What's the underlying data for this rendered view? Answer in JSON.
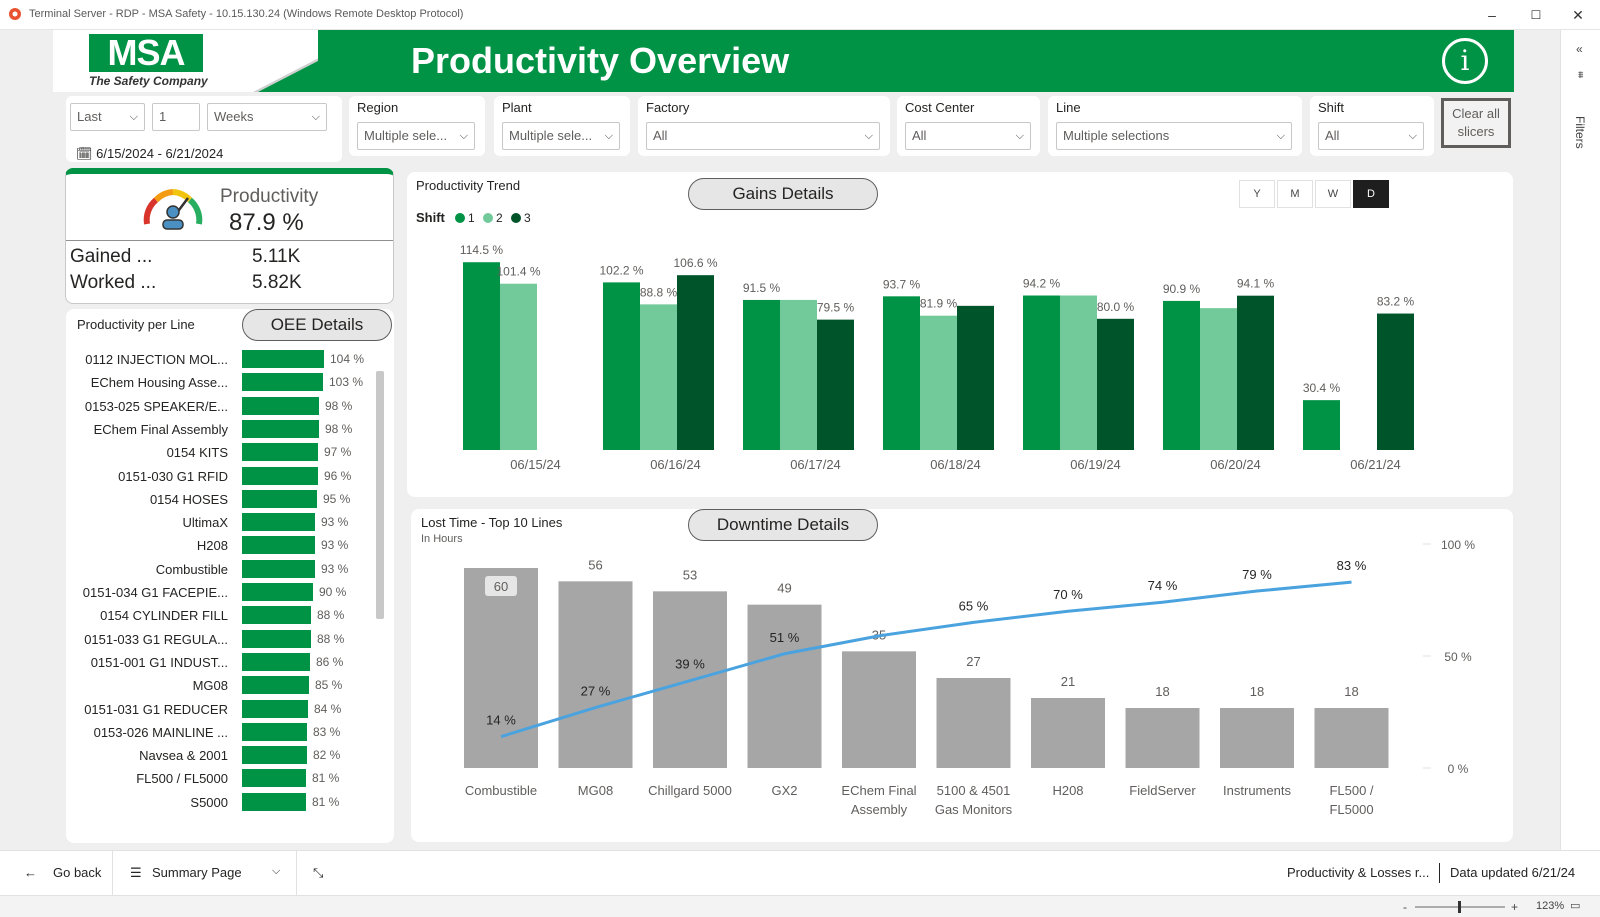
{
  "window": {
    "title": "Terminal Server - RDP - MSA Safety - 10.15.130.24 (Windows Remote Desktop Protocol)",
    "controls": [
      "–",
      "☐",
      "✕"
    ]
  },
  "header": {
    "logo_text": "MSA",
    "tagline": "The Safety Company",
    "title": "Productivity Overview",
    "info_label": "i",
    "brand_color": "#009245"
  },
  "filters": {
    "relative": {
      "mode": "Last",
      "count": "1",
      "unit": "Weeks",
      "date_range": "6/15/2024 - 6/21/2024"
    },
    "region": {
      "label": "Region",
      "value": "Multiple sele..."
    },
    "plant": {
      "label": "Plant",
      "value": "Multiple sele..."
    },
    "factory": {
      "label": "Factory",
      "value": "All"
    },
    "cost_center": {
      "label": "Cost Center",
      "value": "All"
    },
    "line": {
      "label": "Line",
      "value": "Multiple selections"
    },
    "shift": {
      "label": "Shift",
      "value": "All"
    },
    "clear_label": "Clear all slicers",
    "pane_label": "Filters"
  },
  "kpi": {
    "label": "Productivity",
    "value": "87.9 %",
    "rows": [
      {
        "label": "Gained ...",
        "value": "5.11K"
      },
      {
        "label": "Worked ...",
        "value": "5.82K"
      }
    ]
  },
  "productivity_per_line": {
    "title": "Productivity per Line",
    "button": "OEE Details",
    "rows": [
      {
        "name": "0112 INJECTION MOL...",
        "pct": "104 %",
        "value": 104
      },
      {
        "name": "EChem Housing Asse...",
        "pct": "103 %",
        "value": 103
      },
      {
        "name": "0153-025 SPEAKER/E...",
        "pct": "98 %",
        "value": 98
      },
      {
        "name": "EChem Final Assembly",
        "pct": "98 %",
        "value": 98
      },
      {
        "name": "0154 KITS",
        "pct": "97 %",
        "value": 97
      },
      {
        "name": "0151-030 G1 RFID",
        "pct": "96 %",
        "value": 96
      },
      {
        "name": "0154 HOSES",
        "pct": "95 %",
        "value": 95
      },
      {
        "name": "UltimaX",
        "pct": "93 %",
        "value": 93
      },
      {
        "name": "H208",
        "pct": "93 %",
        "value": 93
      },
      {
        "name": "Combustible",
        "pct": "93 %",
        "value": 93
      },
      {
        "name": "0151-034 G1 FACEPIE...",
        "pct": "90 %",
        "value": 90
      },
      {
        "name": "0154 CYLINDER FILL",
        "pct": "88 %",
        "value": 88
      },
      {
        "name": "0151-033 G1 REGULA...",
        "pct": "88 %",
        "value": 88
      },
      {
        "name": "0151-001 G1 INDUST...",
        "pct": "86 %",
        "value": 86
      },
      {
        "name": "MG08",
        "pct": "85 %",
        "value": 85
      },
      {
        "name": "0151-031 G1 REDUCER",
        "pct": "84 %",
        "value": 84
      },
      {
        "name": "0153-026 MAINLINE ...",
        "pct": "83 %",
        "value": 83
      },
      {
        "name": "Navsea & 2001",
        "pct": "82 %",
        "value": 82
      },
      {
        "name": "FL500 / FL5000",
        "pct": "81 %",
        "value": 81
      },
      {
        "name": "S5000",
        "pct": "81 %",
        "value": 81
      }
    ]
  },
  "trend": {
    "title": "Productivity Trend",
    "button": "Gains Details",
    "legend_title": "Shift",
    "legend": [
      {
        "name": "1",
        "color": "#009245"
      },
      {
        "name": "2",
        "color": "#72c99a"
      },
      {
        "name": "3",
        "color": "#00542a"
      }
    ],
    "granularity": [
      "Y",
      "M",
      "W",
      "D"
    ],
    "granularity_active": "D"
  },
  "lost_time": {
    "title": "Lost Time - Top 10 Lines",
    "subtitle": "In Hours",
    "button": "Downtime Details"
  },
  "chart_data": [
    {
      "type": "bar",
      "title": "Productivity Trend",
      "categories": [
        "06/15/24",
        "06/16/24",
        "06/17/24",
        "06/18/24",
        "06/19/24",
        "06/20/24",
        "06/21/24"
      ],
      "series": [
        {
          "name": "1",
          "color": "#009245",
          "values": [
            114.5,
            102.2,
            91.5,
            93.7,
            94.2,
            90.9,
            30.4
          ],
          "labels": [
            "114.5 %",
            "102.2 %",
            "91.5 %",
            "93.7 %",
            "94.2 %",
            "90.9 %",
            "30.4 %"
          ]
        },
        {
          "name": "2",
          "color": "#72c99a",
          "values": [
            101.4,
            88.8,
            91.5,
            81.9,
            94.2,
            86.5,
            null
          ],
          "labels": [
            "101.4 %",
            "88.8 %",
            "",
            "81.9 %",
            "",
            "",
            ""
          ]
        },
        {
          "name": "3",
          "color": "#00542a",
          "values": [
            null,
            106.6,
            79.5,
            87.9,
            80.0,
            94.1,
            83.2
          ],
          "labels": [
            "",
            "106.6 %",
            "79.5 %",
            "",
            "80.0 %",
            "94.1 %",
            "83.2 %"
          ]
        }
      ],
      "ylim": [
        0,
        125
      ],
      "grid": false,
      "legend": "top-left"
    },
    {
      "type": "bar",
      "title": "Lost Time - Top 10 Lines",
      "subtitle": "In Hours",
      "categories": [
        "Combustible",
        "MG08",
        "Chillgard 5000",
        "GX2",
        "EChem Final Assembly",
        "5100 & 4501 Gas Monitors",
        "H208",
        "FieldServer",
        "Instruments",
        "FL500 / FL5000"
      ],
      "category_lines": [
        [
          "Combustible"
        ],
        [
          "MG08"
        ],
        [
          "Chillgard 5000"
        ],
        [
          "GX2"
        ],
        [
          "EChem Final",
          "Assembly"
        ],
        [
          "5100 & 4501",
          "Gas Monitors"
        ],
        [
          "H208"
        ],
        [
          "FieldServer"
        ],
        [
          "Instruments"
        ],
        [
          "FL500 /",
          "FL5000"
        ]
      ],
      "series": [
        {
          "name": "Hours",
          "color": "#a6a6a6",
          "values": [
            60,
            56,
            53,
            49,
            35,
            27,
            21,
            18,
            18,
            18
          ],
          "labels": [
            "60",
            "56",
            "53",
            "49",
            "35",
            "27",
            "21",
            "18",
            "18",
            "18"
          ]
        },
        {
          "name": "Cumulative %",
          "type": "line",
          "color": "#4aa3df",
          "values": [
            14,
            27,
            39,
            51,
            59,
            65,
            70,
            74,
            79,
            83
          ],
          "labels": [
            "14 %",
            "27 %",
            "39 %",
            "51 %",
            "",
            "65 %",
            "70 %",
            "74 %",
            "79 %",
            "83 %"
          ]
        }
      ],
      "ylim": [
        0,
        60
      ],
      "y2_ticks": [
        "0 %",
        "50 %",
        "100 %"
      ],
      "y2lim": [
        0,
        100
      ],
      "grid": false
    }
  ],
  "footer": {
    "back": "Go back",
    "page": "Summary Page",
    "report": "Productivity & Losses r...",
    "updated": "Data updated 6/21/24",
    "zoom": "123%"
  }
}
